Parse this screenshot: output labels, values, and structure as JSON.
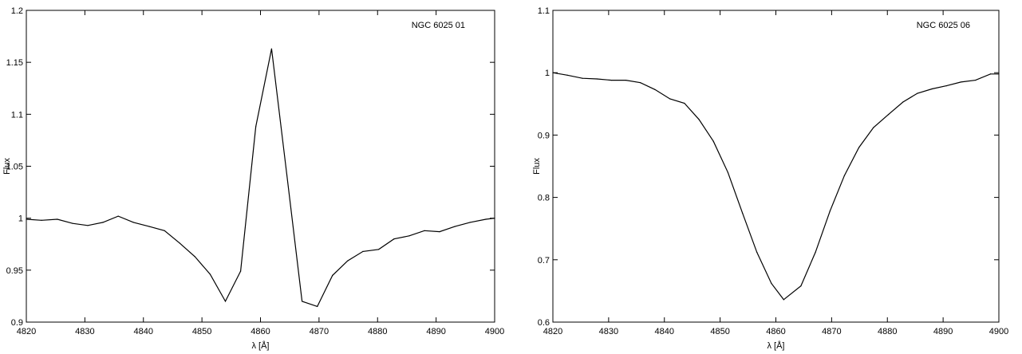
{
  "chart_data": [
    {
      "type": "line",
      "annotation": "NGC 6025 01",
      "xlabel": "λ [Å]",
      "ylabel": "Flux",
      "xlim": [
        4820,
        4900
      ],
      "ylim": [
        0.9,
        1.2
      ],
      "xticks": [
        "4820",
        "4830",
        "4840",
        "4850",
        "4860",
        "4870",
        "4880",
        "4890",
        "4900"
      ],
      "yticks": [
        "0.9",
        "0.95",
        "1",
        "1.05",
        "1.1",
        "1.15",
        "1.2"
      ],
      "grid": false,
      "series": [
        {
          "x": [
            4820,
            4822.6,
            4825.3,
            4827.9,
            4830.5,
            4833.1,
            4835.7,
            4838.3,
            4841,
            4843.6,
            4846.2,
            4848.8,
            4851.4,
            4854,
            4856.6,
            4859.2,
            4861.9,
            4864.5,
            4867.1,
            4869.7,
            4872.3,
            4874.9,
            4877.5,
            4880.2,
            4882.8,
            4885.4,
            4888,
            4890.6,
            4893.2,
            4895.8,
            4898.5,
            4900
          ],
          "y": [
            0.999,
            0.998,
            0.999,
            0.995,
            0.993,
            0.996,
            1.002,
            0.996,
            0.992,
            0.988,
            0.976,
            0.963,
            0.946,
            0.92,
            0.949,
            1.088,
            1.163,
            1.042,
            0.92,
            0.915,
            0.945,
            0.959,
            0.968,
            0.97,
            0.98,
            0.983,
            0.988,
            0.987,
            0.992,
            0.996,
            0.999,
            1.0
          ]
        }
      ]
    },
    {
      "type": "line",
      "annotation": "NGC 6025 06",
      "xlabel": "λ [Å]",
      "ylabel": "Flux",
      "xlim": [
        4820,
        4900
      ],
      "ylim": [
        0.6,
        1.1
      ],
      "xticks": [
        "4820",
        "4830",
        "4840",
        "4850",
        "4860",
        "4870",
        "4880",
        "4890",
        "4900"
      ],
      "yticks": [
        "0.6",
        "0.7",
        "0.8",
        "0.9",
        "1",
        "1.1"
      ],
      "grid": false,
      "series": [
        {
          "x": [
            4820,
            4822.6,
            4825.3,
            4827.9,
            4830.5,
            4833.1,
            4835.7,
            4838.3,
            4841,
            4843.6,
            4846.2,
            4848.8,
            4851.4,
            4854,
            4856.6,
            4859.2,
            4861.4,
            4864.5,
            4867.1,
            4869.7,
            4872.3,
            4874.9,
            4877.5,
            4880.2,
            4882.8,
            4885.4,
            4888,
            4890.6,
            4893.2,
            4895.8,
            4898.5,
            4900
          ],
          "y": [
            1.0,
            0.996,
            0.991,
            0.99,
            0.988,
            0.988,
            0.984,
            0.973,
            0.958,
            0.951,
            0.925,
            0.89,
            0.84,
            0.775,
            0.712,
            0.662,
            0.636,
            0.658,
            0.712,
            0.778,
            0.835,
            0.88,
            0.912,
            0.933,
            0.953,
            0.967,
            0.974,
            0.979,
            0.985,
            0.988,
            0.998,
            0.998
          ]
        }
      ]
    }
  ]
}
